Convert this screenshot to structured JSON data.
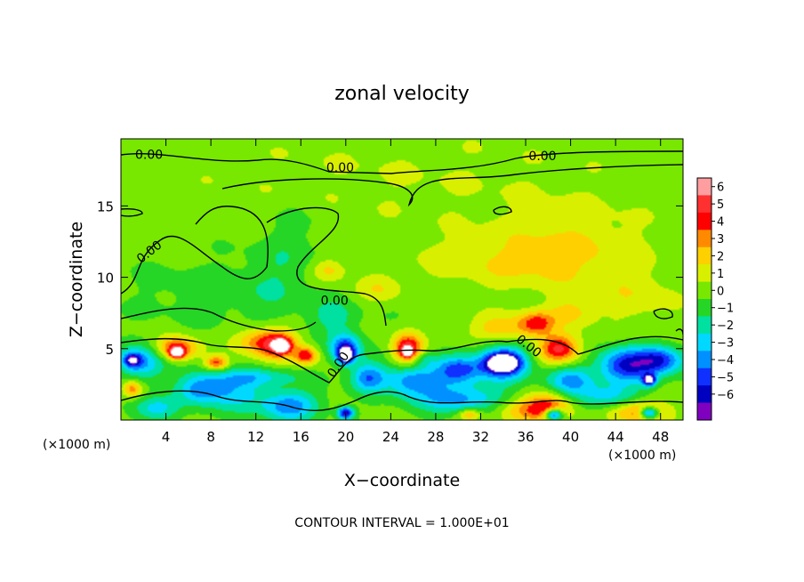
{
  "chart_data": {
    "type": "heatmap",
    "title": "zonal velocity",
    "xlabel": "X−coordinate",
    "ylabel": "Z−coordinate",
    "x_unit_label": "(×1000 m)",
    "z_unit_label": "(×1000 m)",
    "footer": "CONTOUR INTERVAL = 1.000E+01",
    "xlim": [
      0,
      50
    ],
    "ylim": [
      0,
      19.7
    ],
    "x_ticks": [
      4,
      8,
      12,
      16,
      20,
      24,
      28,
      32,
      36,
      40,
      44,
      48
    ],
    "y_ticks": [
      5,
      10,
      15
    ],
    "colorbar": {
      "ticks": [
        6,
        5,
        4,
        3,
        2,
        1,
        0,
        -1,
        -2,
        -3,
        -4,
        -5,
        -6
      ],
      "tick_labels": [
        "6",
        "5",
        "4",
        "3",
        "2",
        "1",
        "0",
        "−1",
        "−2",
        "−3",
        "−4",
        "−5",
        "−6"
      ],
      "colors": [
        "#ff9ea0",
        "#ff3030",
        "#ff0000",
        "#ff8a00",
        "#ffd000",
        "#d8f000",
        "#78e800",
        "#26d626",
        "#00e0a0",
        "#00d8ff",
        "#0090ff",
        "#1030ff",
        "#0000c0",
        "#8000c0"
      ]
    },
    "contour_labels": [
      {
        "text": "0.00",
        "x": 2.5,
        "z": 18.6,
        "rot": 0
      },
      {
        "text": "0.00",
        "x": 19.5,
        "z": 17.7,
        "rot": 0
      },
      {
        "text": "0.00",
        "x": 37.5,
        "z": 18.5,
        "rot": 0
      },
      {
        "text": "0.00",
        "x": 2.5,
        "z": 11.8,
        "rot": -38
      },
      {
        "text": "0.00",
        "x": 19,
        "z": 8.4,
        "rot": 0
      },
      {
        "text": "0.00",
        "x": 19.3,
        "z": 3.9,
        "rot": -55
      },
      {
        "text": "0.00",
        "x": 36.3,
        "z": 5.2,
        "rot": 38
      }
    ],
    "features": [
      {
        "x": 25,
        "z": 17,
        "v": 0.7,
        "rx": 25,
        "rz": 4
      },
      {
        "x": 40,
        "z": 12,
        "v": 1.4,
        "rx": 7,
        "rz": 3
      },
      {
        "x": 34,
        "z": 11,
        "v": 1.2,
        "rx": 9,
        "rz": 2
      },
      {
        "x": 18.5,
        "z": 10.5,
        "v": 2.2,
        "rx": 1.5,
        "rz": 0.8
      },
      {
        "x": 23,
        "z": 9.2,
        "v": 1.5,
        "rx": 2,
        "rz": 1
      },
      {
        "x": 46,
        "z": 8.5,
        "v": 1.2,
        "rx": 4,
        "rz": 2
      },
      {
        "x": 8,
        "z": 9,
        "v": -0.8,
        "rx": 6,
        "rz": 2
      },
      {
        "x": 14,
        "z": 10,
        "v": -0.9,
        "rx": 3,
        "rz": 3.5
      },
      {
        "x": 19,
        "z": 7.2,
        "v": -1.8,
        "rx": 2,
        "rz": 1.2
      },
      {
        "x": 16,
        "z": 13,
        "v": -0.5,
        "rx": 3,
        "rz": 3
      },
      {
        "x": 5,
        "z": 5,
        "v": 4.6,
        "rx": 1.8,
        "rz": 0.8
      },
      {
        "x": 5,
        "z": 4.7,
        "v": 6.5,
        "rx": 0.6,
        "rz": 0.35
      },
      {
        "x": 8.5,
        "z": 4,
        "v": 4.2,
        "rx": 1,
        "rz": 0.5
      },
      {
        "x": 1,
        "z": 2.2,
        "v": 3.5,
        "rx": 0.9,
        "rz": 0.6
      },
      {
        "x": 12,
        "z": 5.5,
        "v": 2.5,
        "rx": 2,
        "rz": 1
      },
      {
        "x": 14,
        "z": 5.3,
        "v": 5,
        "rx": 1.8,
        "rz": 1
      },
      {
        "x": 14.3,
        "z": 5.2,
        "v": 6.8,
        "rx": 0.6,
        "rz": 0.4
      },
      {
        "x": 16.5,
        "z": 4.5,
        "v": 4.3,
        "rx": 1,
        "rz": 0.6
      },
      {
        "x": 25.5,
        "z": 5,
        "v": 5.5,
        "rx": 1.3,
        "rz": 1
      },
      {
        "x": 25.5,
        "z": 4.8,
        "v": 6.3,
        "rx": 0.4,
        "rz": 0.3
      },
      {
        "x": 34,
        "z": 6.4,
        "v": 2.5,
        "rx": 3,
        "rz": 1
      },
      {
        "x": 37,
        "z": 6.8,
        "v": 3.5,
        "rx": 1.5,
        "rz": 0.8
      },
      {
        "x": 39,
        "z": 5,
        "v": 5.2,
        "rx": 1.8,
        "rz": 1
      },
      {
        "x": 38,
        "z": 1,
        "v": 3.5,
        "rx": 2,
        "rz": 1
      },
      {
        "x": 36,
        "z": 0.6,
        "v": 2.5,
        "rx": 3,
        "rz": 0.8
      },
      {
        "x": 46,
        "z": 0.6,
        "v": 3.5,
        "rx": 3,
        "rz": 0.8
      },
      {
        "x": 40,
        "z": 7.5,
        "v": 2,
        "rx": 2,
        "rz": 1
      },
      {
        "x": 2,
        "z": 4,
        "v": -3.5,
        "rx": 2,
        "rz": 1.2
      },
      {
        "x": 1,
        "z": 4.2,
        "v": -4.8,
        "rx": 0.8,
        "rz": 0.5
      },
      {
        "x": 10,
        "z": 2,
        "v": -2.8,
        "rx": 3,
        "rz": 1.3
      },
      {
        "x": 7,
        "z": 2.2,
        "v": -3.2,
        "rx": 2,
        "rz": 1
      },
      {
        "x": 15,
        "z": 1,
        "v": -4,
        "rx": 2.5,
        "rz": 1
      },
      {
        "x": 20,
        "z": 5,
        "v": -5.5,
        "rx": 1.3,
        "rz": 1
      },
      {
        "x": 20,
        "z": 4.5,
        "v": -6.8,
        "rx": 0.6,
        "rz": 0.5
      },
      {
        "x": 22,
        "z": 3,
        "v": -4,
        "rx": 1.5,
        "rz": 1
      },
      {
        "x": 26,
        "z": 2.8,
        "v": -4,
        "rx": 2.5,
        "rz": 1
      },
      {
        "x": 30,
        "z": 3.5,
        "v": -4.5,
        "rx": 2,
        "rz": 1
      },
      {
        "x": 34,
        "z": 4,
        "v": -5.5,
        "rx": 2.3,
        "rz": 1.2
      },
      {
        "x": 34,
        "z": 4,
        "v": -6.8,
        "rx": 1.3,
        "rz": 0.6
      },
      {
        "x": 30,
        "z": 1.5,
        "v": -3.5,
        "rx": 4,
        "rz": 1
      },
      {
        "x": 40,
        "z": 2.8,
        "v": -3.5,
        "rx": 2,
        "rz": 1
      },
      {
        "x": 45,
        "z": 3.8,
        "v": -5.5,
        "rx": 2.5,
        "rz": 1.2
      },
      {
        "x": 47,
        "z": 2.8,
        "v": -6.8,
        "rx": 0.6,
        "rz": 0.4
      },
      {
        "x": 48,
        "z": 4.2,
        "v": -4.5,
        "rx": 2,
        "rz": 1
      },
      {
        "x": 20,
        "z": 0.5,
        "v": -6.5,
        "rx": 0.7,
        "rz": 0.4
      },
      {
        "x": 38.5,
        "z": 0.4,
        "v": -6.5,
        "rx": 0.8,
        "rz": 0.4
      },
      {
        "x": 47,
        "z": 0.5,
        "v": -6.5,
        "rx": 0.8,
        "rz": 0.4
      },
      {
        "x": 31,
        "z": 0.4,
        "v": 3,
        "rx": 1,
        "rz": 0.4
      },
      {
        "x": 12,
        "z": 3,
        "v": -2,
        "rx": 4,
        "rz": 0.6
      },
      {
        "x": 43,
        "z": 1.5,
        "v": -2.5,
        "rx": 3,
        "rz": 1
      },
      {
        "x": 27,
        "z": 4.3,
        "v": -1.5,
        "rx": 1,
        "rz": 0.5
      },
      {
        "x": 3,
        "z": 0.8,
        "v": -2.8,
        "rx": 2,
        "rz": 0.8
      }
    ]
  }
}
